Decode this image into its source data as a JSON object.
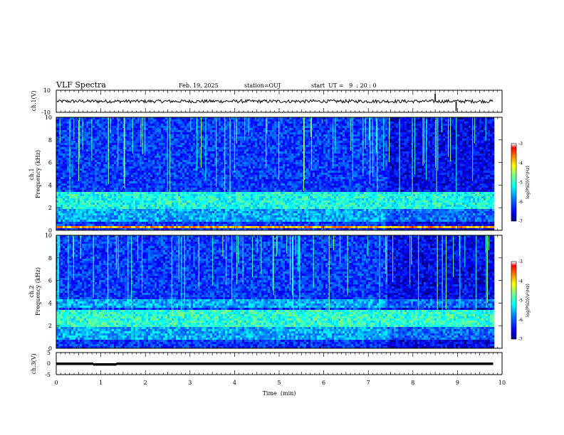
{
  "header": {
    "title": "VLF Spectra",
    "date": "Feb. 19, 2025",
    "station": "station=OUJ",
    "start_ut": "start  UT =   9  : 20 : 0"
  },
  "chart_data": [
    {
      "type": "line",
      "panel": "ch1-waveform",
      "ylabel": "ch.1(V)",
      "ylim": [
        -10,
        10
      ],
      "yticks": [
        "10",
        "-10"
      ],
      "xlim": [
        0,
        10
      ],
      "baseline": 0,
      "noise_amplitude": 1.5,
      "spikes": [
        {
          "x": 8.5,
          "y": 7
        },
        {
          "x": 8.97,
          "y": -9
        }
      ]
    },
    {
      "type": "heatmap",
      "panel": "ch1-spectrogram",
      "ylabel_line1": "ch.1",
      "ylabel_line2": "Frequency (kHz)",
      "ylim": [
        0,
        10
      ],
      "yticks": [
        "0",
        "2",
        "4",
        "6",
        "8",
        "10"
      ],
      "xlim": [
        0,
        10
      ],
      "colorbar": {
        "label": "log(PSD)(V²/Hz)",
        "range": [
          -7,
          -3
        ],
        "ticks": [
          "-3",
          "-4",
          "-5",
          "-6",
          "-7"
        ],
        "colors": [
          "#00007f",
          "#0000ff",
          "#007fff",
          "#00ffff",
          "#7fff7f",
          "#ffff00",
          "#ff7f00",
          "#ff0000",
          "#ffffff"
        ]
      },
      "bands": [
        {
          "f_min": 2.0,
          "f_max": 3.4,
          "level": -5.1
        },
        {
          "f_min": 0.9,
          "f_max": 1.9,
          "level": -5.6
        },
        {
          "f_min": 0.2,
          "f_max": 0.5,
          "level": -3.8
        }
      ],
      "data_end_min": 9.8
    },
    {
      "type": "heatmap",
      "panel": "ch2-spectrogram",
      "ylabel_line1": "ch.2",
      "ylabel_line2": "Frequency (kHz)",
      "ylim": [
        0,
        10
      ],
      "yticks": [
        "0",
        "2",
        "4",
        "6",
        "8",
        "10"
      ],
      "xlim": [
        0,
        10
      ],
      "colorbar": {
        "label": "log(PSD)(V²/Hz)",
        "range": [
          -7,
          -3
        ],
        "ticks": [
          "-3",
          "-4",
          "-5",
          "-6",
          "-7"
        ],
        "colors": [
          "#00007f",
          "#0000ff",
          "#007fff",
          "#00ffff",
          "#7fff7f",
          "#ffff00",
          "#ff7f00",
          "#ff0000",
          "#ffffff"
        ]
      },
      "bands": [
        {
          "f_min": 2.0,
          "f_max": 3.4,
          "level": -5.0
        },
        {
          "f_min": 3.6,
          "f_max": 4.4,
          "level": -5.6
        },
        {
          "f_min": 0.9,
          "f_max": 1.9,
          "level": -5.6
        }
      ],
      "data_end_min": 9.8
    },
    {
      "type": "line",
      "panel": "ch3-waveform",
      "ylabel": "ch.3(V)",
      "ylim": [
        -5,
        5
      ],
      "yticks": [
        "5",
        "0",
        "-5"
      ],
      "xlim": [
        0,
        10
      ],
      "xlabel": "Time  (min)",
      "xticks": [
        "0",
        "1",
        "2",
        "3",
        "4",
        "5",
        "6",
        "7",
        "8",
        "9",
        "10"
      ],
      "segments": [
        {
          "x0": 0,
          "x1": 0.83,
          "y": 0
        },
        {
          "x0": 0.83,
          "x1": 1.35,
          "y": -0.3
        },
        {
          "x0": 1.35,
          "x1": 9.8,
          "y": 0
        }
      ]
    }
  ]
}
